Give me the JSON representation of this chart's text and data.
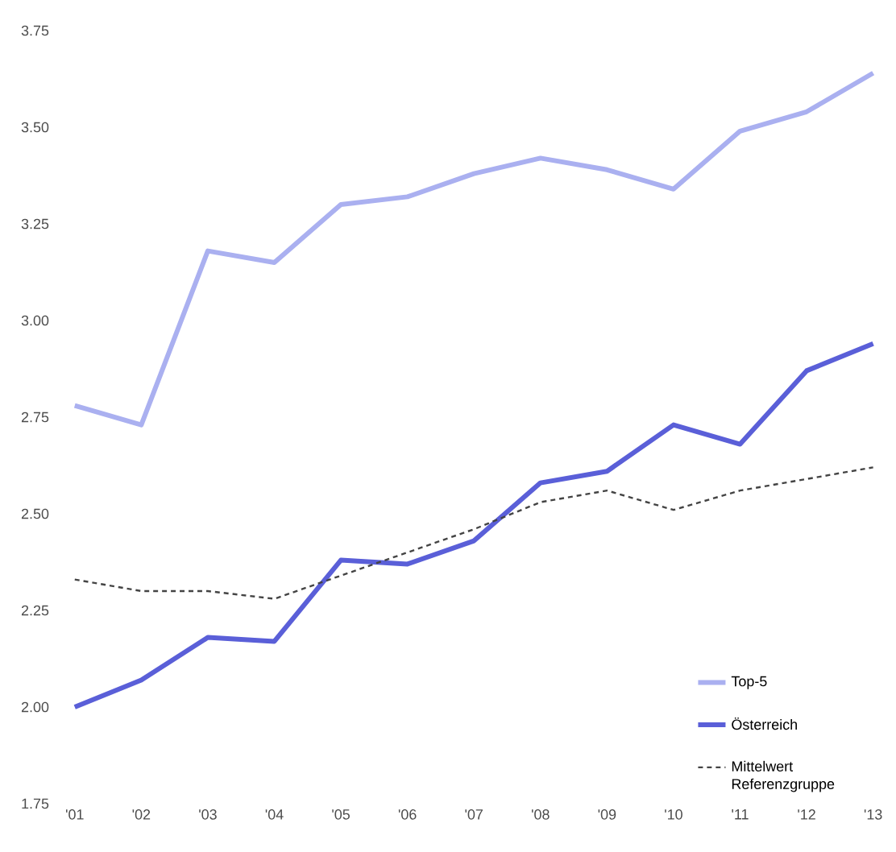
{
  "chart_data": {
    "type": "line",
    "categories": [
      "'01",
      "'02",
      "'03",
      "'04",
      "'05",
      "'06",
      "'07",
      "'08",
      "'09",
      "'10",
      "'11",
      "'12",
      "'13"
    ],
    "series": [
      {
        "name": "Top-5",
        "color": "#aab0f0",
        "line_style": "solid",
        "values": [
          2.78,
          2.73,
          3.18,
          3.15,
          3.3,
          3.32,
          3.38,
          3.42,
          3.39,
          3.34,
          3.49,
          3.54,
          3.64
        ]
      },
      {
        "name": "Österreich",
        "color": "#5a5fd8",
        "line_style": "solid",
        "values": [
          2.0,
          2.07,
          2.18,
          2.17,
          2.38,
          2.37,
          2.43,
          2.58,
          2.61,
          2.73,
          2.68,
          2.87,
          2.94
        ]
      },
      {
        "name": "Mittelwert Referenzgruppe",
        "color": "#444444",
        "line_style": "dashed",
        "values": [
          2.33,
          2.3,
          2.3,
          2.28,
          2.34,
          2.4,
          2.46,
          2.53,
          2.56,
          2.51,
          2.56,
          2.59,
          2.62
        ]
      }
    ],
    "ylim": [
      1.75,
      3.75
    ],
    "yticks": [
      1.75,
      {
        "value": 2.0,
        "label": "2.00"
      },
      2.25,
      {
        "value": 2.5,
        "label": "2.50"
      },
      2.75,
      {
        "value": 3.0,
        "label": "3.00"
      },
      3.25,
      {
        "value": 3.5,
        "label": "3.50"
      },
      3.75
    ],
    "grid": false,
    "legend": "bottom right",
    "marker": "none"
  }
}
